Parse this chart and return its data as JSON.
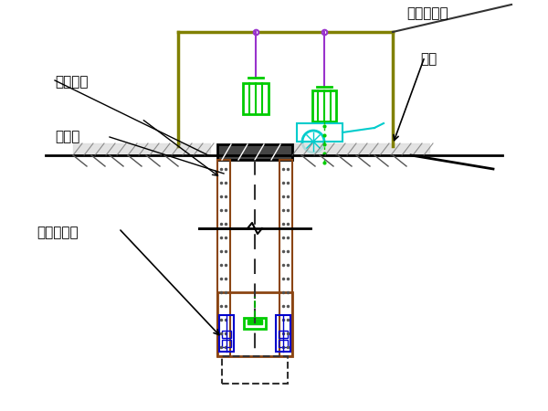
{
  "bg_color": "#ffffff",
  "title": "",
  "label_单轨": "单轨电动葫",
  "label_活底": "活底",
  "label_活动安全": "活动安全",
  "label_混凝土": "混凝土",
  "label_定型组合钢": "定型组合钢",
  "crane_frame_color": "#808000",
  "rope_color": "#9933cc",
  "bucket_color": "#00cc00",
  "cart_color": "#00cccc",
  "wall_color": "#8B4513",
  "wall_dot_color": "#333333",
  "ground_color": "#333333",
  "ground_fill": "#cccccc",
  "hatch_color": "#333333",
  "dashed_color": "#333333",
  "blue_pump_color": "#0000cc",
  "green_pump_color": "#00cc00"
}
